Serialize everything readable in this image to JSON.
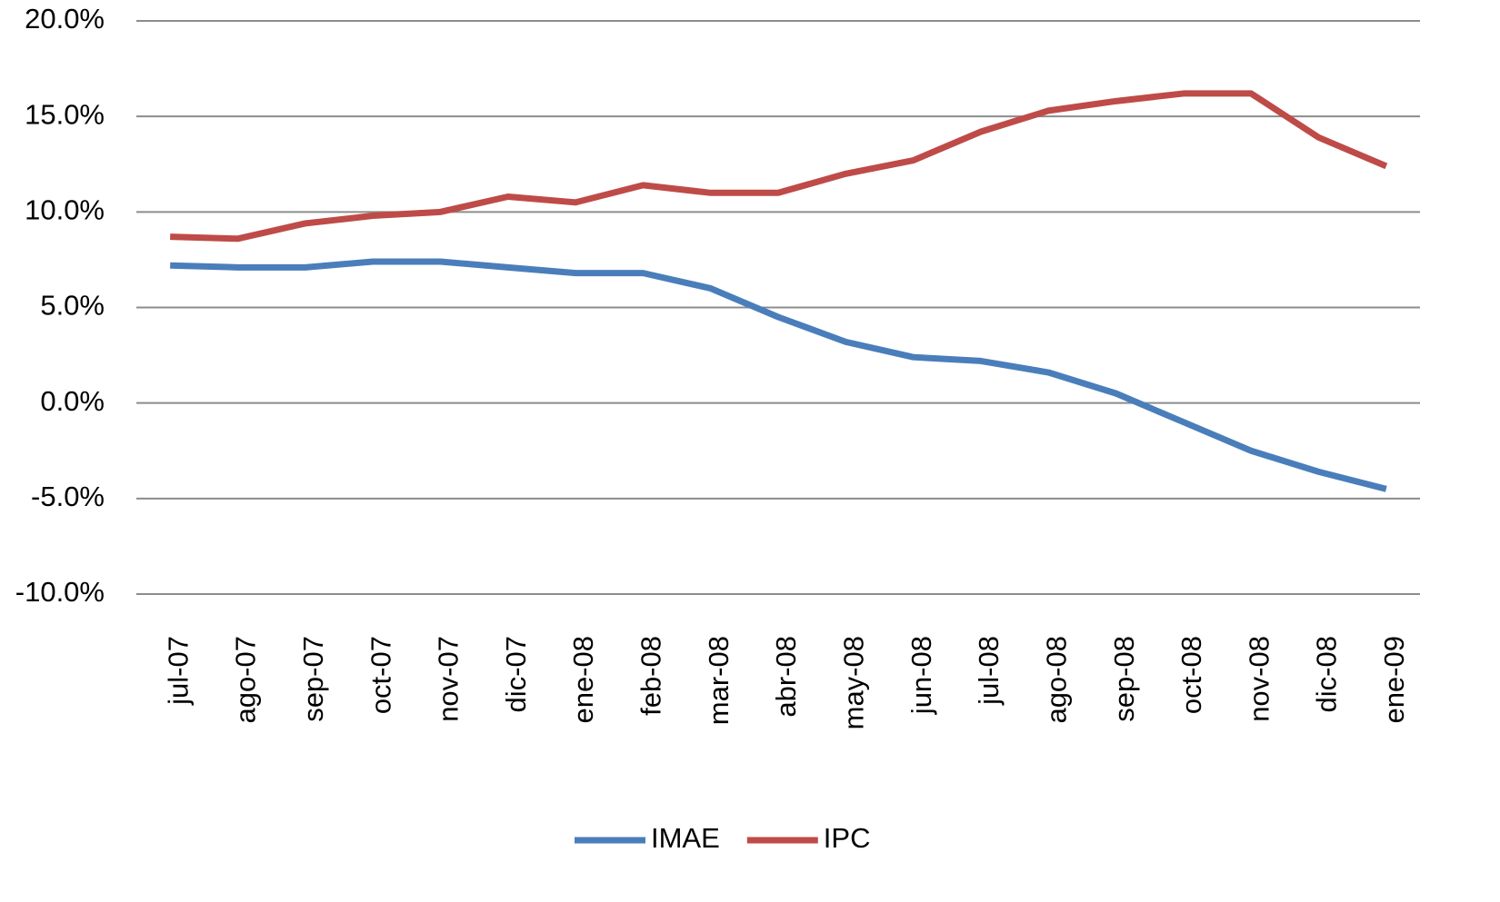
{
  "chart_data": {
    "type": "line",
    "categories": [
      "jul-07",
      "ago-07",
      "sep-07",
      "oct-07",
      "nov-07",
      "dic-07",
      "ene-08",
      "feb-08",
      "mar-08",
      "abr-08",
      "may-08",
      "jun-08",
      "jul-08",
      "ago-08",
      "sep-08",
      "oct-08",
      "nov-08",
      "dic-08",
      "ene-09"
    ],
    "series": [
      {
        "name": "IMAE",
        "color": "#4a7ebb",
        "values": [
          7.2,
          7.1,
          7.1,
          7.4,
          7.4,
          7.1,
          6.8,
          6.8,
          6.0,
          4.5,
          3.2,
          2.4,
          2.2,
          1.6,
          0.5,
          -1.0,
          -2.5,
          -3.6,
          -4.5
        ]
      },
      {
        "name": "IPC",
        "color": "#be4b48",
        "values": [
          8.7,
          8.6,
          9.4,
          9.8,
          10.0,
          10.8,
          10.5,
          11.4,
          11.0,
          11.0,
          12.0,
          12.7,
          14.2,
          15.3,
          15.8,
          16.2,
          16.2,
          13.9,
          12.4
        ]
      }
    ],
    "ylim": [
      -10,
      20
    ],
    "yticks": [
      {
        "value": -10,
        "label": "-10.0%"
      },
      {
        "value": -5,
        "label": "-5.0%"
      },
      {
        "value": 0,
        "label": "0.0%"
      },
      {
        "value": 5,
        "label": "5.0%"
      },
      {
        "value": 10,
        "label": "10.0%"
      },
      {
        "value": 15,
        "label": "15.0%"
      },
      {
        "value": 20,
        "label": "20.0%"
      }
    ],
    "grid": true,
    "legend": "bottom"
  }
}
